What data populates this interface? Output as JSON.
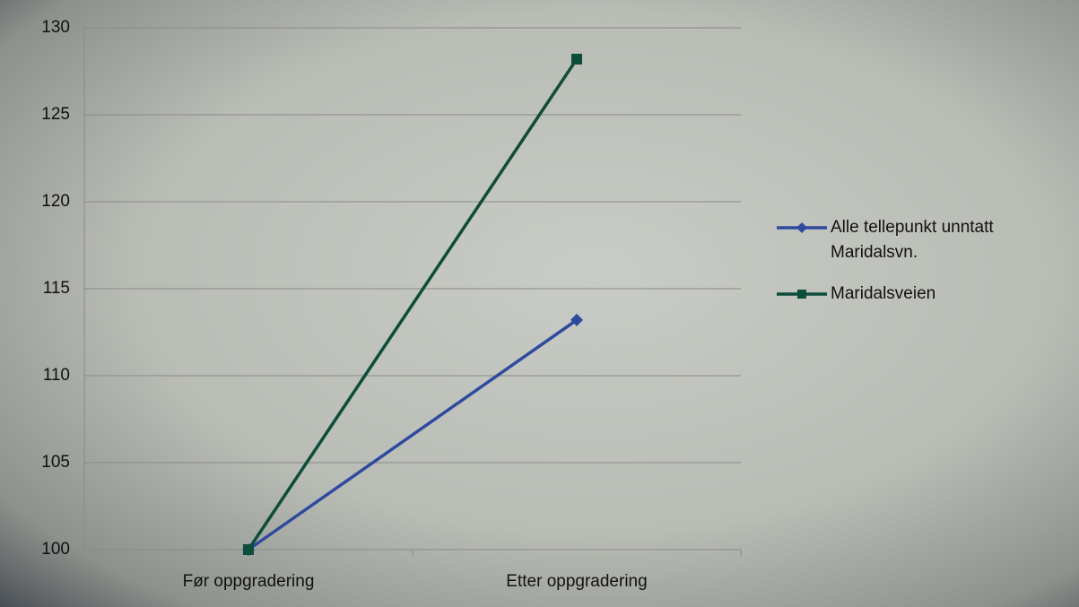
{
  "chart_data": {
    "type": "line",
    "categories": [
      "Før oppgradering",
      "Etter oppgradering"
    ],
    "series": [
      {
        "name": "Alle tellepunkt unntatt Maridalsvn.",
        "color": "#2e4a9e",
        "marker": "diamond",
        "values": [
          100,
          113.2
        ]
      },
      {
        "name": "Maridalsveien",
        "color": "#0d4d3b",
        "marker": "square",
        "values": [
          100,
          128.2
        ]
      }
    ],
    "ylim": [
      100,
      130
    ],
    "yticks": [
      100,
      105,
      110,
      115,
      120,
      125,
      130
    ],
    "grid": true,
    "legend": "right"
  }
}
